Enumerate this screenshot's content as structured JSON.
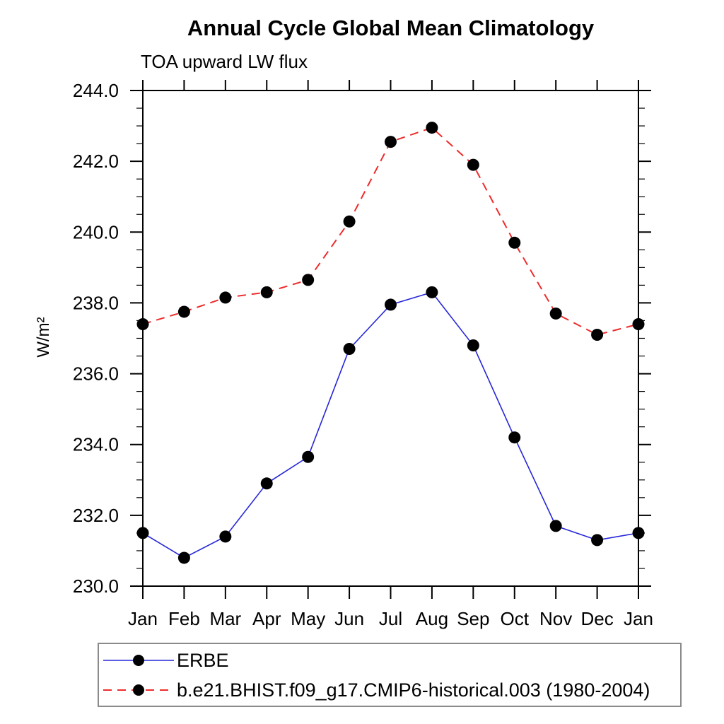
{
  "chart_data": {
    "type": "line",
    "title": "Annual Cycle Global Mean Climatology",
    "subtitle": "TOA upward LW flux",
    "ylabel": "W/m²",
    "xlabel": "",
    "categories": [
      "Jan",
      "Feb",
      "Mar",
      "Apr",
      "May",
      "Jun",
      "Jul",
      "Aug",
      "Sep",
      "Oct",
      "Nov",
      "Dec",
      "Jan"
    ],
    "ylim": [
      230.0,
      244.0
    ],
    "y_major_step": 2.0,
    "y_minor_step": 0.5,
    "y_tick_labels": [
      "230.0",
      "232.0",
      "234.0",
      "236.0",
      "238.0",
      "240.0",
      "242.0",
      "244.0"
    ],
    "grid": false,
    "legend_position": "bottom-left-box",
    "series": [
      {
        "name": "ERBE",
        "color": "#2626d8",
        "line_style": "solid",
        "marker": "filled-circle",
        "marker_color": "#000000",
        "values": [
          231.5,
          230.8,
          231.4,
          232.9,
          233.65,
          236.7,
          237.95,
          238.3,
          236.8,
          234.2,
          231.7,
          231.3,
          231.5
        ]
      },
      {
        "name": "b.e21.BHIST.f09_g17.CMIP6-historical.003 (1980-2004)",
        "color": "#ee2c2c",
        "line_style": "dashed",
        "marker": "filled-circle",
        "marker_color": "#000000",
        "values": [
          237.4,
          237.75,
          238.15,
          238.3,
          238.65,
          240.3,
          242.55,
          242.95,
          241.9,
          239.7,
          237.7,
          237.1,
          237.4
        ]
      }
    ]
  },
  "colors": {
    "axis": "#000000",
    "text": "#000000",
    "legend_border": "#8a8a8a",
    "background": "#ffffff"
  }
}
